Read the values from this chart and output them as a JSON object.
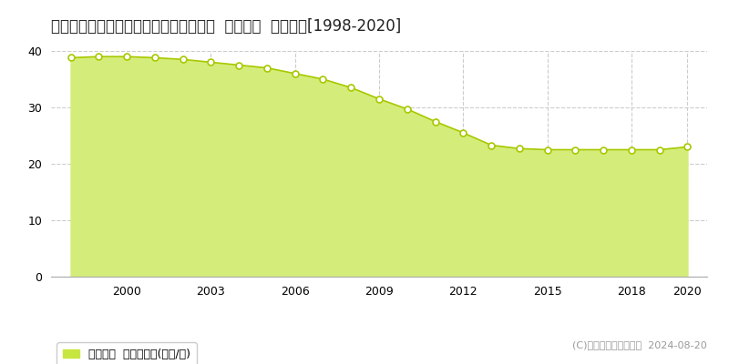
{
  "title": "高知県高知市加賀野井２丁目１番８２外  地価公示  地価推移[1998-2020]",
  "years": [
    1998,
    1999,
    2000,
    2001,
    2002,
    2003,
    2004,
    2005,
    2006,
    2007,
    2008,
    2009,
    2010,
    2011,
    2012,
    2013,
    2014,
    2015,
    2016,
    2017,
    2018,
    2019,
    2020
  ],
  "values": [
    38.8,
    39.0,
    39.0,
    38.8,
    38.5,
    38.0,
    37.5,
    37.0,
    36.0,
    35.0,
    33.5,
    31.5,
    29.7,
    27.5,
    25.5,
    23.3,
    22.7,
    22.5,
    22.5,
    22.5,
    22.5,
    22.5,
    23.0
  ],
  "fill_color": "#d4ed7a",
  "line_color": "#a8c800",
  "marker_color": "#ffffff",
  "marker_edge_color": "#a8c800",
  "grid_color": "#cccccc",
  "bg_color": "#ffffff",
  "plot_bg_color": "#ffffff",
  "ylim": [
    0,
    40
  ],
  "yticks": [
    0,
    10,
    20,
    30,
    40
  ],
  "xticks": [
    2000,
    2003,
    2006,
    2009,
    2012,
    2015,
    2018,
    2020
  ],
  "xlim_left": 1997.3,
  "xlim_right": 2020.7,
  "legend_label": "地価公示  平均坪単価(万円/坪)",
  "legend_color": "#c8e640",
  "copyright_text": "(C)土地価格ドットコム  2024-08-20",
  "title_fontsize": 12,
  "tick_fontsize": 9,
  "legend_fontsize": 9,
  "copyright_fontsize": 8
}
